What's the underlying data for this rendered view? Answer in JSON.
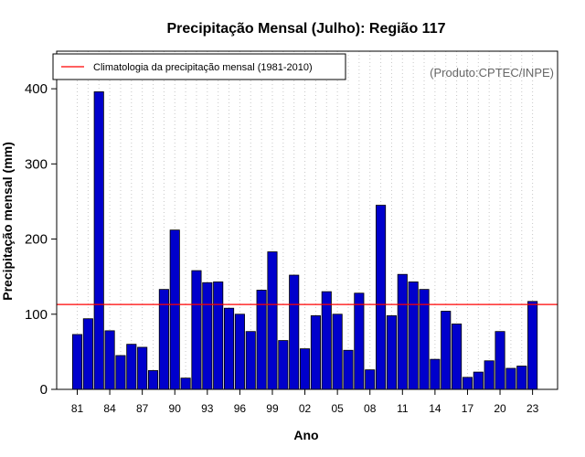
{
  "chart_data": {
    "type": "bar",
    "title": "Precipitação Mensal (Julho): Região 117",
    "xlabel": "Ano",
    "ylabel": "Precipitação mensal (mm)",
    "ylim": [
      0,
      450
    ],
    "yticks": [
      0,
      100,
      200,
      300,
      400
    ],
    "years": [
      1981,
      1982,
      1983,
      1984,
      1985,
      1986,
      1987,
      1988,
      1989,
      1990,
      1991,
      1992,
      1993,
      1994,
      1995,
      1996,
      1997,
      1998,
      1999,
      2000,
      2001,
      2002,
      2003,
      2004,
      2005,
      2006,
      2007,
      2008,
      2009,
      2010,
      2011,
      2012,
      2013,
      2014,
      2015,
      2016,
      2017,
      2018,
      2019,
      2020,
      2021,
      2022,
      2023
    ],
    "values": [
      73,
      94,
      396,
      78,
      45,
      60,
      56,
      25,
      133,
      212,
      15,
      158,
      142,
      143,
      108,
      100,
      77,
      132,
      183,
      65,
      152,
      54,
      98,
      130,
      100,
      52,
      128,
      26,
      245,
      98,
      153,
      143,
      133,
      40,
      104,
      87,
      16,
      23,
      38,
      77,
      28,
      31,
      117
    ],
    "xtick_labels": [
      "81",
      "84",
      "87",
      "90",
      "93",
      "96",
      "99",
      "02",
      "05",
      "08",
      "11",
      "14",
      "17",
      "20",
      "23"
    ],
    "xtick_indices": [
      0,
      3,
      6,
      9,
      12,
      15,
      18,
      21,
      24,
      27,
      30,
      33,
      36,
      39,
      42
    ],
    "climatology": 113,
    "legend": "Climatologia da precipitação mensal (1981-2010)",
    "legend_position": "top-left",
    "grid": "vertical-dotted",
    "bar_color": "#0000cc",
    "line_color": "#ff0000",
    "source": "(Produto:CPTEC/INPE)"
  }
}
